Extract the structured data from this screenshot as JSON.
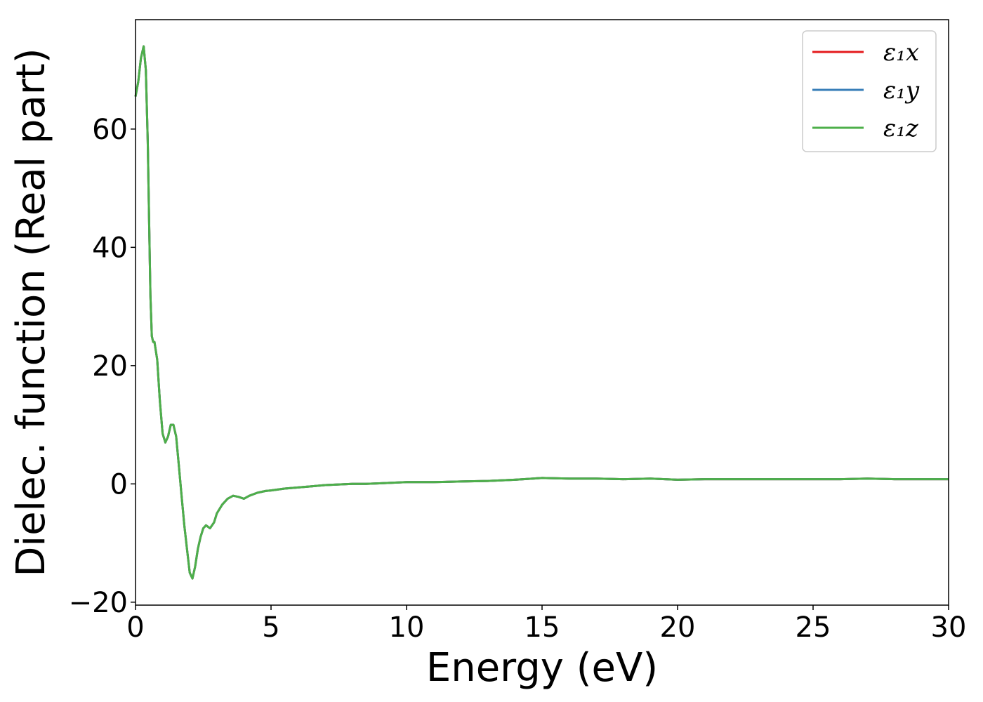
{
  "chart_data": {
    "type": "line",
    "xlabel": "Energy (eV)",
    "ylabel": "Dielec. function (Real part)",
    "xlim": [
      0,
      30
    ],
    "ylim": [
      -20.5,
      78.5
    ],
    "x_ticks": [
      0,
      5,
      10,
      15,
      20,
      25,
      30
    ],
    "x_tick_labels": [
      "0",
      "5",
      "10",
      "15",
      "20",
      "25",
      "30"
    ],
    "y_ticks": [
      -20,
      0,
      20,
      40,
      60
    ],
    "y_tick_labels": [
      "−20",
      "0",
      "20",
      "40",
      "60"
    ],
    "grid": false,
    "legend_position": "top-right",
    "series": [
      {
        "name": "ε₁x",
        "color": "#e41a1c"
      },
      {
        "name": "ε₁y",
        "color": "#377eb8"
      },
      {
        "name": "ε₁z",
        "color": "#4daf4a"
      }
    ],
    "shared_curve": {
      "x": [
        0,
        0.1,
        0.2,
        0.3,
        0.38,
        0.45,
        0.5,
        0.55,
        0.6,
        0.65,
        0.7,
        0.8,
        0.9,
        1.0,
        1.1,
        1.2,
        1.3,
        1.4,
        1.5,
        1.6,
        1.7,
        1.8,
        1.9,
        2.0,
        2.1,
        2.2,
        2.3,
        2.4,
        2.5,
        2.6,
        2.75,
        2.9,
        3.0,
        3.2,
        3.4,
        3.6,
        3.8,
        4.0,
        4.2,
        4.5,
        4.8,
        5.0,
        5.5,
        6.0,
        6.5,
        7.0,
        7.5,
        8.0,
        8.5,
        9.0,
        9.5,
        10.0,
        11.0,
        12.0,
        13.0,
        14.0,
        15.0,
        16.0,
        17.0,
        18.0,
        19.0,
        20.0,
        21.0,
        22.0,
        23.0,
        24.0,
        25.0,
        26.0,
        27.0,
        28.0,
        29.0,
        30.0
      ],
      "y": [
        65.5,
        68,
        72,
        74,
        70,
        58,
        45,
        32,
        25,
        24,
        24,
        21,
        14,
        8.5,
        7,
        8,
        10,
        10,
        8,
        3,
        -2,
        -7,
        -11,
        -15,
        -16,
        -14,
        -11,
        -9,
        -7.5,
        -7,
        -7.5,
        -6.5,
        -5,
        -3.5,
        -2.5,
        -2,
        -2.2,
        -2.5,
        -2,
        -1.5,
        -1.2,
        -1.1,
        -0.8,
        -0.6,
        -0.4,
        -0.2,
        -0.1,
        0,
        0,
        0.1,
        0.2,
        0.3,
        0.3,
        0.4,
        0.5,
        0.7,
        1.0,
        0.9,
        0.9,
        0.8,
        0.9,
        0.7,
        0.8,
        0.8,
        0.8,
        0.8,
        0.8,
        0.8,
        0.9,
        0.8,
        0.8,
        0.8
      ]
    }
  }
}
